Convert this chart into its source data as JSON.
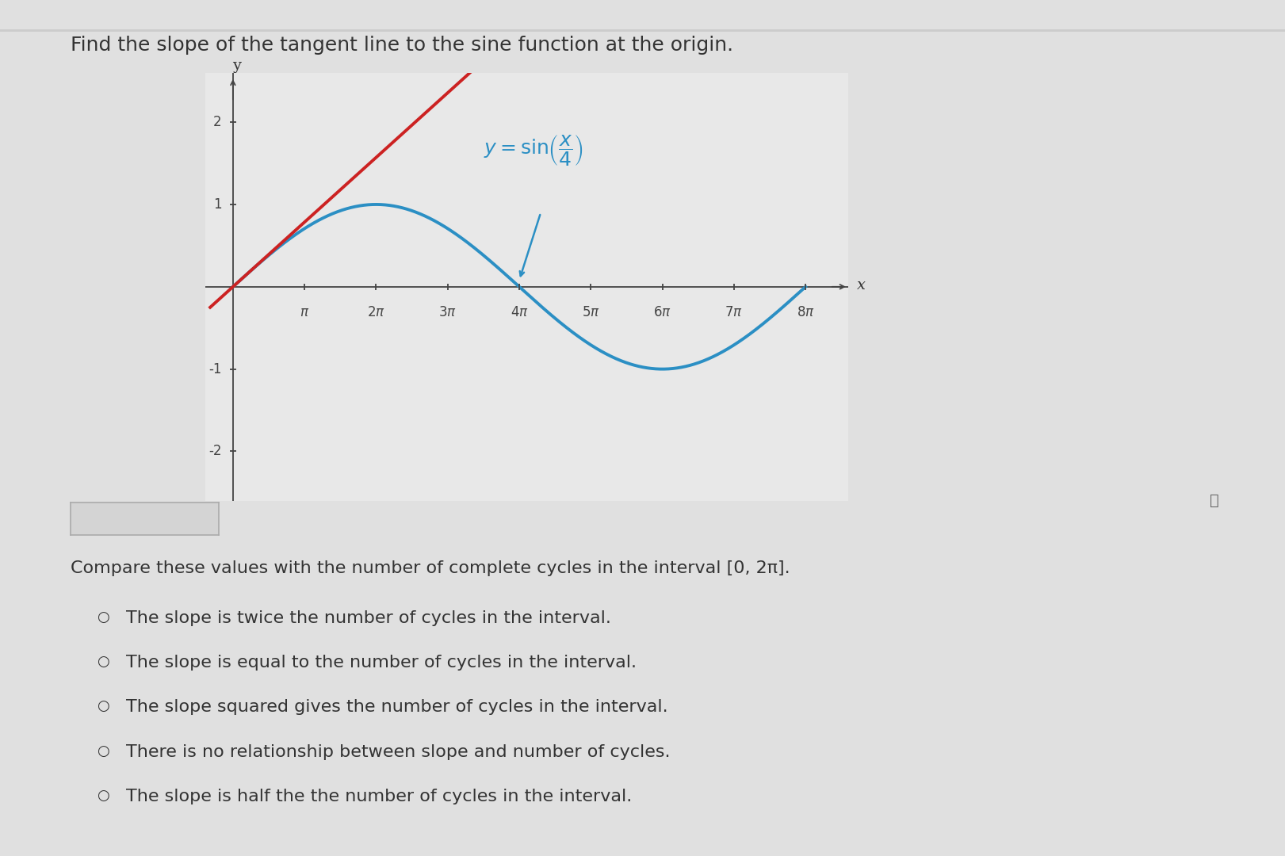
{
  "bg_color": "#e0e0e0",
  "title_text": "Find the slope of the tangent line to the sine function at the origin.",
  "title_fontsize": 18,
  "title_color": "#333333",
  "plot_bg_color": "#e8e8e8",
  "sine_color": "#2b8fc4",
  "sine_linewidth": 2.8,
  "tangent_color": "#cc2222",
  "tangent_linewidth": 2.8,
  "axis_color": "#444444",
  "tick_color": "#444444",
  "label_color": "#333333",
  "sine_label_color": "#2b8fc4",
  "sine_label_fontsize": 18,
  "arrow_color": "#2b8fc4",
  "ylim": [
    -2.6,
    2.6
  ],
  "xlim_min": -1.2,
  "xlim_max": 27.0,
  "yticks": [
    -2,
    -1,
    1,
    2
  ],
  "compare_text": "Compare these values with the number of complete cycles in the interval [0, 2π].",
  "options": [
    "The slope is twice the number of cycles in the interval.",
    "The slope is equal to the number of cycles in the interval.",
    "The slope squared gives the number of cycles in the interval.",
    "There is no relationship between slope and number of cycles.",
    "The slope is half the the number of cycles in the interval."
  ],
  "option_fontsize": 16,
  "compare_fontsize": 16,
  "info_color": "#666666",
  "box_bg": "#d4d4d4",
  "box_border": "#aaaaaa"
}
